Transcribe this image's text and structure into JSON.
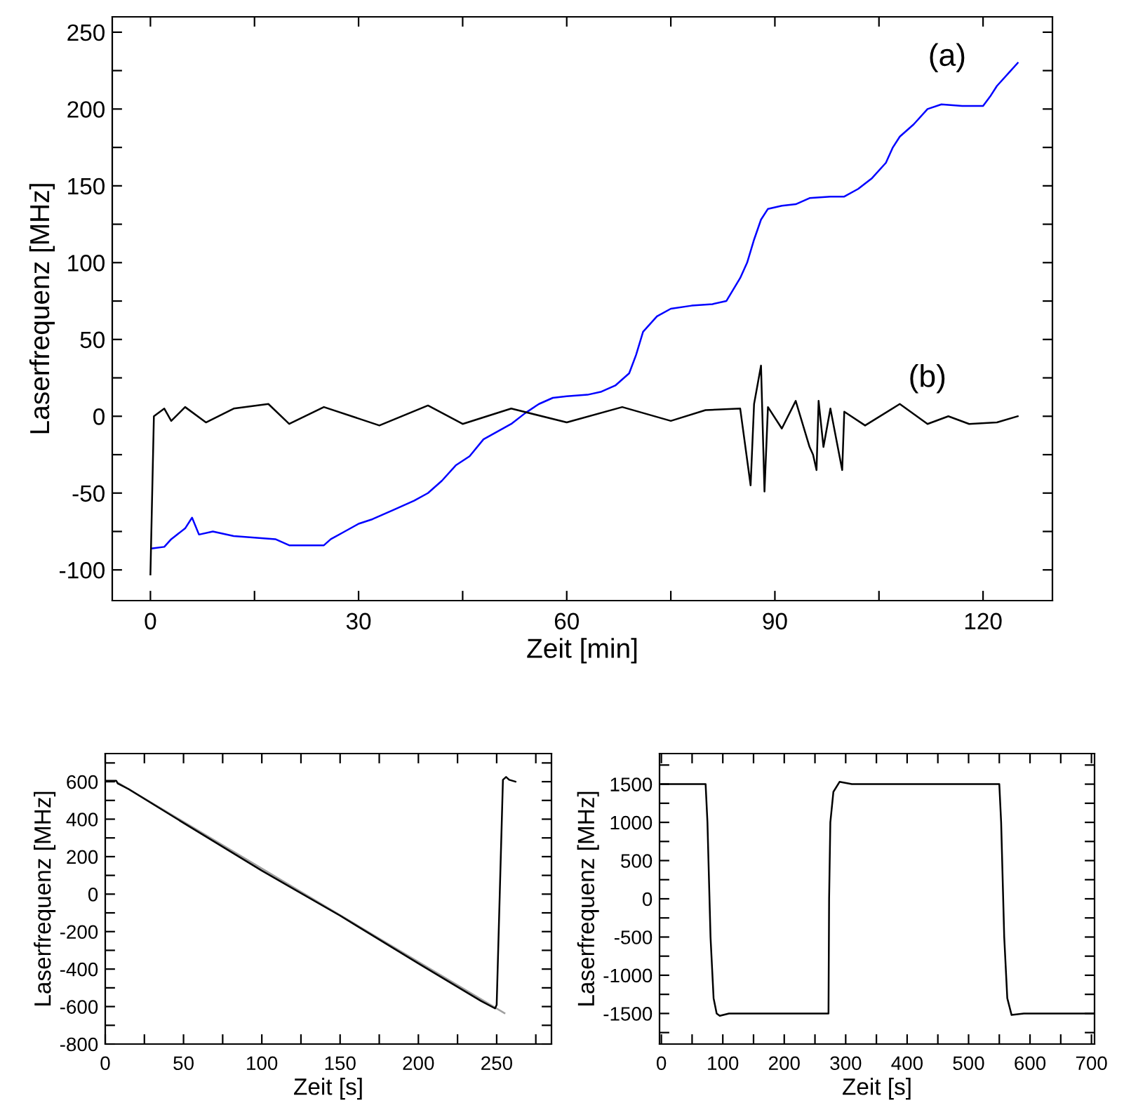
{
  "chart_data": [
    {
      "type": "line",
      "xlabel": "Zeit [min]",
      "ylabel": "Laserfrequenz [MHz]",
      "xlim": [
        -5.5,
        130
      ],
      "ylim": [
        -120,
        260
      ],
      "xticks": [
        0,
        {
          "value": 15,
          "label": null
        },
        30,
        {
          "value": 45,
          "label": null
        },
        60,
        {
          "value": 75,
          "label": null
        },
        90,
        {
          "value": 105,
          "label": null
        },
        120
      ],
      "yticks": [
        -100,
        {
          "value": -75,
          "label": null
        },
        -50,
        {
          "value": -25,
          "label": null
        },
        0,
        {
          "value": 25,
          "label": null
        },
        50,
        {
          "value": 75,
          "label": null
        },
        100,
        {
          "value": 125,
          "label": null
        },
        150,
        {
          "value": 175,
          "label": null
        },
        200,
        {
          "value": 225,
          "label": null
        },
        250
      ],
      "grid": false,
      "legend": false,
      "annotations": [
        "(a)",
        "(b)"
      ],
      "series": [
        {
          "color": "#0000ff",
          "x": [
            0.3,
            2,
            3,
            5,
            6,
            7,
            9,
            12,
            15,
            18,
            20,
            25,
            26,
            28,
            30,
            32,
            35,
            38,
            40,
            42,
            44,
            46,
            48,
            50,
            52,
            54,
            56,
            58,
            60,
            63,
            65,
            67,
            69,
            70,
            71,
            73,
            75,
            78,
            81,
            83,
            85,
            86,
            87,
            88,
            89,
            91,
            93,
            95,
            98,
            100,
            102,
            104,
            106,
            107,
            108,
            110,
            112,
            114,
            117,
            120,
            121,
            122,
            124,
            125
          ],
          "values": [
            -86,
            -85,
            -80,
            -73,
            -66,
            -77,
            -75,
            -78,
            -79,
            -80,
            -84,
            -84,
            -80,
            -75,
            -70,
            -67,
            -61,
            -55,
            -50,
            -42,
            -32,
            -26,
            -15,
            -10,
            -5,
            2,
            8,
            12,
            13,
            14,
            16,
            20,
            28,
            40,
            55,
            65,
            70,
            72,
            73,
            75,
            90,
            100,
            115,
            128,
            135,
            137,
            138,
            142,
            143,
            143,
            148,
            155,
            165,
            175,
            182,
            190,
            200,
            203,
            202,
            202,
            208,
            215,
            225,
            230
          ]
        },
        {
          "color": "#000000",
          "x": [
            0,
            0.5,
            2,
            3,
            5,
            8,
            12,
            17,
            20,
            25,
            33,
            40,
            45,
            52,
            60,
            68,
            75,
            80,
            85,
            86.5,
            87,
            88,
            88.5,
            89,
            91,
            93,
            95,
            95.5,
            96,
            96.3,
            97,
            98,
            99.7,
            100,
            103,
            108,
            112,
            115,
            118,
            122,
            125
          ],
          "values": [
            -103,
            0,
            5,
            -3,
            6,
            -4,
            5,
            8,
            -5,
            6,
            -6,
            7,
            -5,
            5,
            -4,
            6,
            -3,
            4,
            5,
            -45,
            8,
            33,
            -49,
            6,
            -8,
            10,
            -20,
            -25,
            -35,
            10,
            -20,
            5,
            -35,
            3,
            -6,
            8,
            -5,
            0,
            -5,
            -4,
            0
          ]
        }
      ]
    },
    {
      "type": "line",
      "xlabel": "Zeit [s]",
      "ylabel": "Laserfrequenz [MHz]",
      "xlim": [
        0,
        285
      ],
      "ylim": [
        -800,
        750
      ],
      "xticks": [
        0,
        {
          "value": 25,
          "label": null
        },
        50,
        {
          "value": 75,
          "label": null
        },
        100,
        {
          "value": 125,
          "label": null
        },
        150,
        {
          "value": 175,
          "label": null
        },
        200,
        {
          "value": 225,
          "label": null
        },
        250,
        {
          "value": 275,
          "label": null
        }
      ],
      "yticks": [
        -800,
        {
          "value": -700,
          "label": null
        },
        -600,
        {
          "value": -500,
          "label": null
        },
        -400,
        {
          "value": -300,
          "label": null
        },
        -200,
        {
          "value": -100,
          "label": null
        },
        0,
        {
          "value": 100,
          "label": null
        },
        200,
        {
          "value": 300,
          "label": null
        },
        400,
        {
          "value": 500,
          "label": null
        },
        600,
        {
          "value": 700,
          "label": null
        }
      ],
      "grid": false,
      "legend": false,
      "series": [
        {
          "color": "#a0a0a0",
          "x": [
            8,
            255
          ],
          "values": [
            595,
            -635
          ]
        },
        {
          "color": "#000000",
          "x": [
            0,
            7,
            8,
            15,
            50,
            100,
            150,
            200,
            240,
            249,
            250,
            254,
            256,
            258,
            262
          ],
          "values": [
            605,
            605,
            590,
            560,
            380,
            125,
            -115,
            -370,
            -570,
            -610,
            -590,
            610,
            625,
            610,
            600
          ]
        }
      ]
    },
    {
      "type": "line",
      "xlabel": "Zeit [s]",
      "ylabel": "Laserfrequenz [MHz]",
      "xlim": [
        -3,
        705
      ],
      "ylim": [
        -1900,
        1900
      ],
      "xticks": [
        0,
        {
          "value": 50,
          "label": null
        },
        100,
        {
          "value": 150,
          "label": null
        },
        200,
        {
          "value": 250,
          "label": null
        },
        300,
        {
          "value": 350,
          "label": null
        },
        400,
        {
          "value": 450,
          "label": null
        },
        500,
        {
          "value": 550,
          "label": null
        },
        600,
        {
          "value": 650,
          "label": null
        },
        700
      ],
      "yticks": [
        {
          "value": -1750,
          "label": null
        },
        -1500,
        {
          "value": -1250,
          "label": null
        },
        -1000,
        {
          "value": -750,
          "label": null
        },
        -500,
        {
          "value": -250,
          "label": null
        },
        0,
        {
          "value": 250,
          "label": null
        },
        500,
        {
          "value": 750,
          "label": null
        },
        1000,
        {
          "value": 1250,
          "label": null
        },
        1500,
        {
          "value": 1750,
          "label": null
        }
      ],
      "grid": false,
      "legend": false,
      "series": [
        {
          "color": "#000000",
          "x": [
            0,
            72,
            75,
            80,
            85,
            90,
            95,
            110,
            272,
            273,
            275,
            280,
            290,
            310,
            550,
            553,
            558,
            563,
            570,
            590,
            705
          ],
          "values": [
            1500,
            1500,
            1000,
            -500,
            -1300,
            -1500,
            -1530,
            -1500,
            -1500,
            0,
            1000,
            1400,
            1530,
            1500,
            1500,
            1000,
            -500,
            -1300,
            -1520,
            -1500,
            -1500
          ]
        }
      ]
    }
  ]
}
